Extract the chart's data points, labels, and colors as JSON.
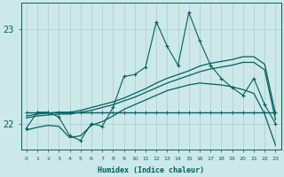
{
  "bg_color": "#cce8e8",
  "grid_color": "#aacccc",
  "line_color": "#006060",
  "xlabel": "Humidex (Indice chaleur)",
  "yticks": [
    22,
    23
  ],
  "xlim": [
    -0.5,
    23.5
  ],
  "ylim": [
    21.72,
    23.28
  ],
  "figsize": [
    3.2,
    2.0
  ],
  "dpi": 100,
  "line_peaked": {
    "x": [
      0,
      1,
      2,
      3,
      4,
      5,
      6,
      7,
      8,
      9,
      10,
      11,
      12,
      13,
      14,
      15,
      16,
      17,
      18,
      19,
      20,
      21,
      22,
      23
    ],
    "y": [
      21.95,
      22.12,
      22.12,
      22.07,
      21.87,
      21.82,
      22.0,
      21.97,
      22.17,
      22.5,
      22.52,
      22.6,
      23.08,
      22.82,
      22.62,
      23.18,
      22.88,
      22.62,
      22.48,
      22.38,
      22.3,
      22.48,
      22.2,
      22.0
    ]
  },
  "line_flat_markers": {
    "x": [
      0,
      1,
      2,
      3,
      4,
      5,
      6,
      7,
      8,
      9,
      10,
      11,
      12,
      13,
      14,
      15,
      16,
      17,
      18,
      19,
      20,
      21,
      22,
      23
    ],
    "y": [
      22.12,
      22.12,
      22.12,
      22.12,
      22.12,
      22.12,
      22.12,
      22.12,
      22.12,
      22.12,
      22.12,
      22.12,
      22.12,
      22.12,
      22.12,
      22.12,
      22.12,
      22.12,
      22.12,
      22.12,
      22.12,
      22.12,
      22.12,
      22.12
    ]
  },
  "line_upper": {
    "x": [
      0,
      1,
      2,
      3,
      4,
      5,
      6,
      7,
      8,
      9,
      10,
      11,
      12,
      13,
      14,
      15,
      16,
      17,
      18,
      19,
      20,
      21,
      22,
      23
    ],
    "y": [
      22.08,
      22.1,
      22.11,
      22.12,
      22.12,
      22.14,
      22.17,
      22.2,
      22.23,
      22.27,
      22.32,
      22.37,
      22.43,
      22.48,
      22.52,
      22.56,
      22.61,
      22.64,
      22.66,
      22.68,
      22.71,
      22.71,
      22.63,
      22.1
    ]
  },
  "line_mid": {
    "x": [
      0,
      1,
      2,
      3,
      4,
      5,
      6,
      7,
      8,
      9,
      10,
      11,
      12,
      13,
      14,
      15,
      16,
      17,
      18,
      19,
      20,
      21,
      22,
      23
    ],
    "y": [
      22.06,
      22.08,
      22.09,
      22.1,
      22.1,
      22.12,
      22.14,
      22.17,
      22.2,
      22.24,
      22.28,
      22.33,
      22.38,
      22.43,
      22.47,
      22.51,
      22.55,
      22.58,
      22.6,
      22.62,
      22.65,
      22.65,
      22.57,
      22.04
    ]
  },
  "line_lower": {
    "x": [
      0,
      1,
      2,
      3,
      4,
      5,
      6,
      7,
      8,
      9,
      10,
      11,
      12,
      13,
      14,
      15,
      16,
      17,
      18,
      19,
      20,
      21,
      22,
      23
    ],
    "y": [
      21.93,
      21.96,
      21.98,
      21.97,
      21.85,
      21.87,
      21.98,
      22.02,
      22.08,
      22.15,
      22.2,
      22.25,
      22.3,
      22.35,
      22.38,
      22.41,
      22.43,
      22.42,
      22.41,
      22.39,
      22.36,
      22.32,
      22.1,
      21.77
    ]
  }
}
